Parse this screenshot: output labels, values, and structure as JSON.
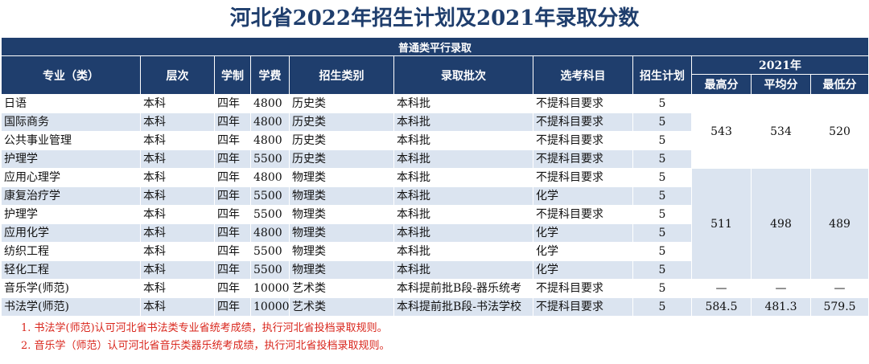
{
  "title": "河北省2022年招生计划及2021年录取分数",
  "banner": "普通类平行录取",
  "headers": {
    "major": "专业（类）",
    "level": "层次",
    "duration": "学制",
    "fee": "学费",
    "category": "招生类别",
    "batch": "录取批次",
    "subjects": "选考科目",
    "plan": "招生计划",
    "year_group": "2021年",
    "max": "最高分",
    "avg": "平均分",
    "min": "最低分"
  },
  "rows": [
    {
      "major": "日语",
      "level": "本科",
      "duration": "四年",
      "fee": "4800",
      "category": "历史类",
      "batch": "本科批",
      "subjects": "不提科目要求",
      "plan": "5"
    },
    {
      "major": "国际商务",
      "level": "本科",
      "duration": "四年",
      "fee": "4800",
      "category": "历史类",
      "batch": "本科批",
      "subjects": "不提科目要求",
      "plan": "5"
    },
    {
      "major": "公共事业管理",
      "level": "本科",
      "duration": "四年",
      "fee": "4800",
      "category": "历史类",
      "batch": "本科批",
      "subjects": "不提科目要求",
      "plan": "5"
    },
    {
      "major": "护理学",
      "level": "本科",
      "duration": "四年",
      "fee": "5500",
      "category": "历史类",
      "batch": "本科批",
      "subjects": "不提科目要求",
      "plan": "5"
    },
    {
      "major": "应用心理学",
      "level": "本科",
      "duration": "四年",
      "fee": "4800",
      "category": "物理类",
      "batch": "本科批",
      "subjects": "不提科目要求",
      "plan": "5"
    },
    {
      "major": "康复治疗学",
      "level": "本科",
      "duration": "四年",
      "fee": "5500",
      "category": "物理类",
      "batch": "本科批",
      "subjects": "化学",
      "plan": "5"
    },
    {
      "major": "护理学",
      "level": "本科",
      "duration": "四年",
      "fee": "5500",
      "category": "物理类",
      "batch": "本科批",
      "subjects": "不提科目要求",
      "plan": "5"
    },
    {
      "major": "应用化学",
      "level": "本科",
      "duration": "四年",
      "fee": "4800",
      "category": "物理类",
      "batch": "本科批",
      "subjects": "化学",
      "plan": "5"
    },
    {
      "major": "纺织工程",
      "level": "本科",
      "duration": "四年",
      "fee": "5500",
      "category": "物理类",
      "batch": "本科批",
      "subjects": "化学",
      "plan": "5"
    },
    {
      "major": "轻化工程",
      "level": "本科",
      "duration": "四年",
      "fee": "5500",
      "category": "物理类",
      "batch": "本科批",
      "subjects": "化学",
      "plan": "5"
    },
    {
      "major": "音乐学(师范)",
      "level": "本科",
      "duration": "四年",
      "fee": "10000",
      "category": "艺术类",
      "batch": "本科提前批B段-器乐统考",
      "subjects": "不提科目要求",
      "plan": "5"
    },
    {
      "major": "书法学(师范)",
      "level": "本科",
      "duration": "四年",
      "fee": "10000",
      "category": "艺术类",
      "batch": "本科提前批B段-书法学校",
      "subjects": "不提科目要求",
      "plan": "5"
    }
  ],
  "scores": {
    "history": {
      "max": "543",
      "avg": "534",
      "min": "520"
    },
    "physics": {
      "max": "511",
      "avg": "498",
      "min": "489"
    },
    "music": {
      "max": "—",
      "avg": "—",
      "min": "—"
    },
    "calligraphy": {
      "max": "584.5",
      "avg": "481.3",
      "min": "579.5"
    }
  },
  "notes": [
    "1. 书法学(师范)认可河北省书法类专业省统考成绩，执行河北省投档录取规则。",
    "2. 音乐学（师范）认可河北省音乐类器乐统考成绩，执行河北省投档录取规则。"
  ],
  "colors": {
    "header_bg": "#1f3e6d",
    "shade_row": "#dbe4f0",
    "note_text": "#d9261c"
  }
}
